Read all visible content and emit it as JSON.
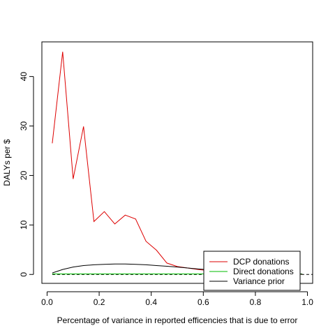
{
  "chart_data": {
    "type": "line",
    "title": "",
    "xlabel": "Percentage of variance in reported efficencies that is due to error",
    "ylabel": "DALYs per $",
    "xlim": [
      -0.02,
      1.02
    ],
    "ylim": [
      -1.8,
      47.0
    ],
    "x_ticks": [
      0.0,
      0.2,
      0.4,
      0.6,
      0.8,
      1.0
    ],
    "x_tick_labels": [
      "0.0",
      "0.2",
      "0.4",
      "0.6",
      "0.8",
      "1.0"
    ],
    "y_ticks": [
      0,
      10,
      20,
      30,
      40
    ],
    "y_tick_labels": [
      "0",
      "10",
      "20",
      "30",
      "40"
    ],
    "grid": false,
    "legend_position": "bottom-right",
    "series": [
      {
        "name": "DCP donations",
        "color": "#dd0000",
        "x": [
          0.02,
          0.06,
          0.1,
          0.14,
          0.18,
          0.22,
          0.26,
          0.3,
          0.34,
          0.38,
          0.42,
          0.46,
          0.5,
          0.54,
          0.58,
          0.62,
          0.66,
          0.7,
          0.74,
          0.78,
          0.82,
          0.86,
          0.9,
          0.94,
          0.98
        ],
        "y": [
          26.5,
          45.0,
          19.3,
          29.9,
          10.7,
          12.7,
          10.2,
          12.0,
          11.2,
          6.7,
          4.9,
          2.3,
          1.6,
          1.3,
          1.0,
          0.8,
          0.6,
          0.5,
          0.4,
          0.3,
          0.25,
          0.2,
          0.15,
          0.1,
          0.05
        ]
      },
      {
        "name": "Direct donations",
        "color": "#00bb00",
        "x": [
          0.02,
          0.06,
          0.1,
          0.14,
          0.18,
          0.22,
          0.26,
          0.3,
          0.34,
          0.38,
          0.42,
          0.46,
          0.5,
          0.54,
          0.58,
          0.62,
          0.66,
          0.7,
          0.74,
          0.78,
          0.82,
          0.86,
          0.9,
          0.94,
          0.98
        ],
        "y": [
          0.1,
          0.1,
          0.1,
          0.1,
          0.1,
          0.1,
          0.1,
          0.1,
          0.1,
          0.1,
          0.1,
          0.1,
          0.1,
          0.1,
          0.1,
          0.1,
          0.1,
          0.1,
          0.1,
          0.1,
          0.1,
          0.1,
          0.1,
          0.1,
          0.1
        ]
      },
      {
        "name": "Variance prior",
        "color": "#000000",
        "x": [
          0.02,
          0.06,
          0.1,
          0.14,
          0.18,
          0.22,
          0.26,
          0.3,
          0.34,
          0.38,
          0.42,
          0.46,
          0.5,
          0.54,
          0.58,
          0.62,
          0.66,
          0.7,
          0.74,
          0.78,
          0.82,
          0.86,
          0.9,
          0.94,
          0.98
        ],
        "y": [
          0.3,
          1.0,
          1.5,
          1.8,
          1.95,
          2.05,
          2.1,
          2.1,
          2.05,
          1.95,
          1.8,
          1.65,
          1.5,
          1.3,
          1.1,
          0.95,
          0.8,
          0.65,
          0.5,
          0.4,
          0.3,
          0.2,
          0.15,
          0.1,
          0.05
        ]
      }
    ],
    "reference_line": {
      "y": 0,
      "style": "dashed",
      "color": "#000000"
    }
  }
}
